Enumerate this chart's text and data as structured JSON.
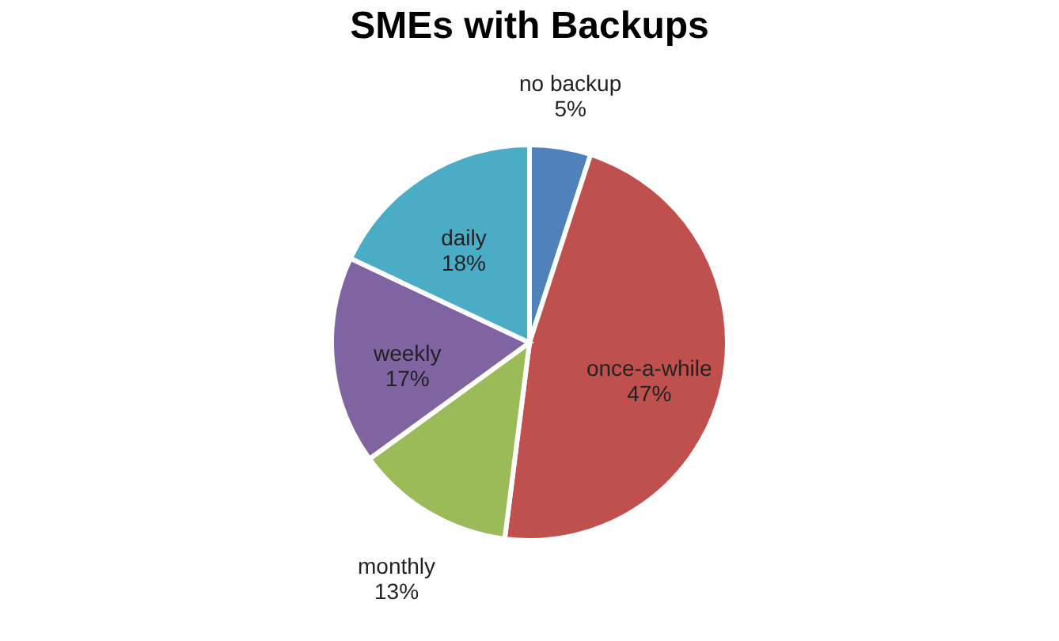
{
  "chart_data": {
    "type": "pie",
    "title": "SMEs with Backups",
    "categories": [
      "no backup",
      "once-a-while",
      "monthly",
      "weekly",
      "daily"
    ],
    "values": [
      5,
      47,
      13,
      17,
      18
    ],
    "value_labels": [
      "5%",
      "47%",
      "13%",
      "17%",
      "18%"
    ],
    "colors": [
      "#4f81bd",
      "#c0504d",
      "#9bbb59",
      "#8064a2",
      "#4bacc6"
    ],
    "legend": false
  }
}
